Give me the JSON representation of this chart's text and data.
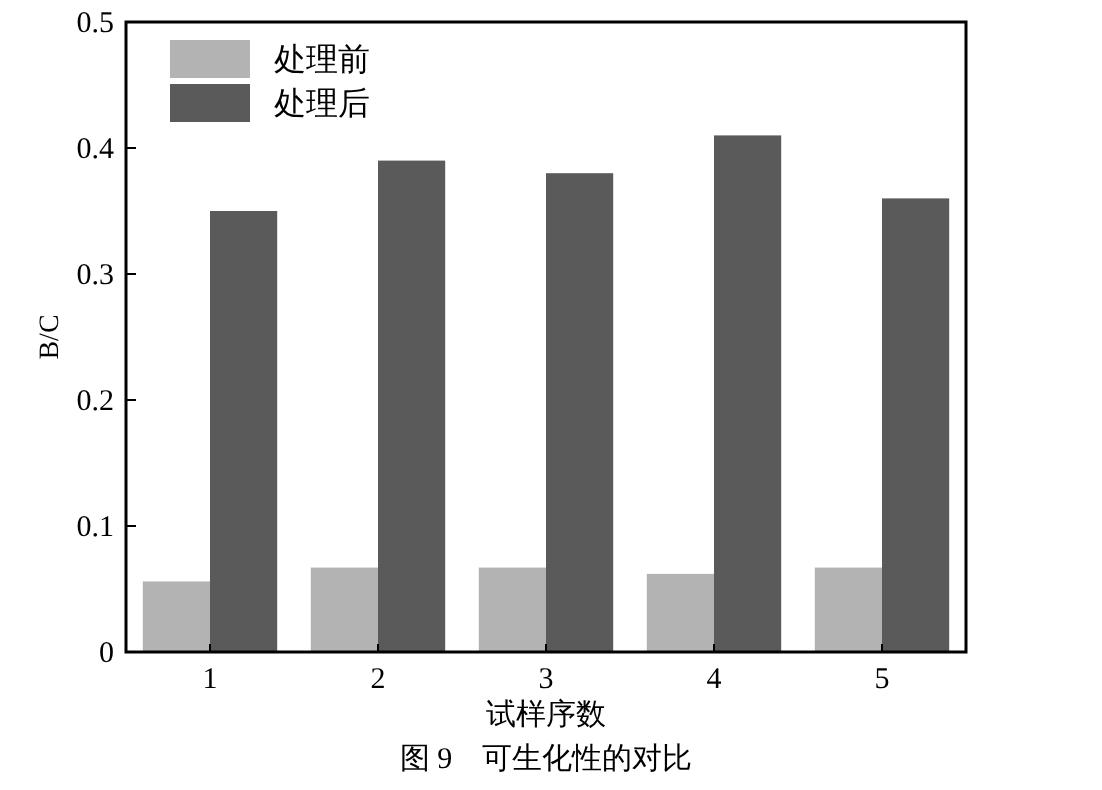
{
  "chart_data": {
    "type": "bar",
    "xlabel": "试样序数",
    "ylabel": "B/C",
    "categories": [
      "1",
      "2",
      "3",
      "4",
      "5"
    ],
    "series": [
      {
        "name": "处理前",
        "color": "#b3b3b3",
        "values": [
          0.056,
          0.067,
          0.067,
          0.062,
          0.067
        ]
      },
      {
        "name": "处理后",
        "color": "#5a5a5a",
        "values": [
          0.35,
          0.39,
          0.38,
          0.41,
          0.36
        ]
      }
    ],
    "ylim": [
      0,
      0.5
    ],
    "yticks": [
      0,
      0.1,
      0.2,
      0.3,
      0.4,
      0.5
    ],
    "legend": "top left",
    "annotations": [
      "图 9　可生化性的对比"
    ]
  }
}
